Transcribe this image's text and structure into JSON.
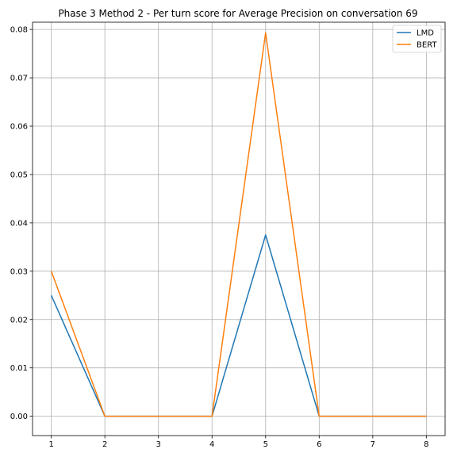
{
  "chart_data": {
    "type": "line",
    "title": "Phase 3 Method 2 - Per turn score for Average Precision on conversation 69",
    "xlabel": "",
    "ylabel": "",
    "x": [
      1,
      2,
      3,
      4,
      5,
      6,
      7,
      8
    ],
    "xlim": [
      0.65,
      8.35
    ],
    "ylim": [
      -0.004,
      0.0815
    ],
    "xticks": [
      "1",
      "2",
      "3",
      "4",
      "5",
      "6",
      "7",
      "8"
    ],
    "yticks": [
      "0.00",
      "0.01",
      "0.02",
      "0.03",
      "0.04",
      "0.05",
      "0.06",
      "0.07",
      "0.08"
    ],
    "grid": true,
    "legend_position": "top-right",
    "series": [
      {
        "name": "LMD",
        "color": "#1f77b4",
        "values": [
          0.025,
          0.0,
          0.0,
          0.0,
          0.0375,
          0.0,
          0.0,
          0.0
        ]
      },
      {
        "name": "BERT",
        "color": "#ff7f0e",
        "values": [
          0.03,
          0.0,
          0.0,
          0.0,
          0.0793,
          0.0,
          0.0,
          0.0
        ]
      }
    ]
  }
}
